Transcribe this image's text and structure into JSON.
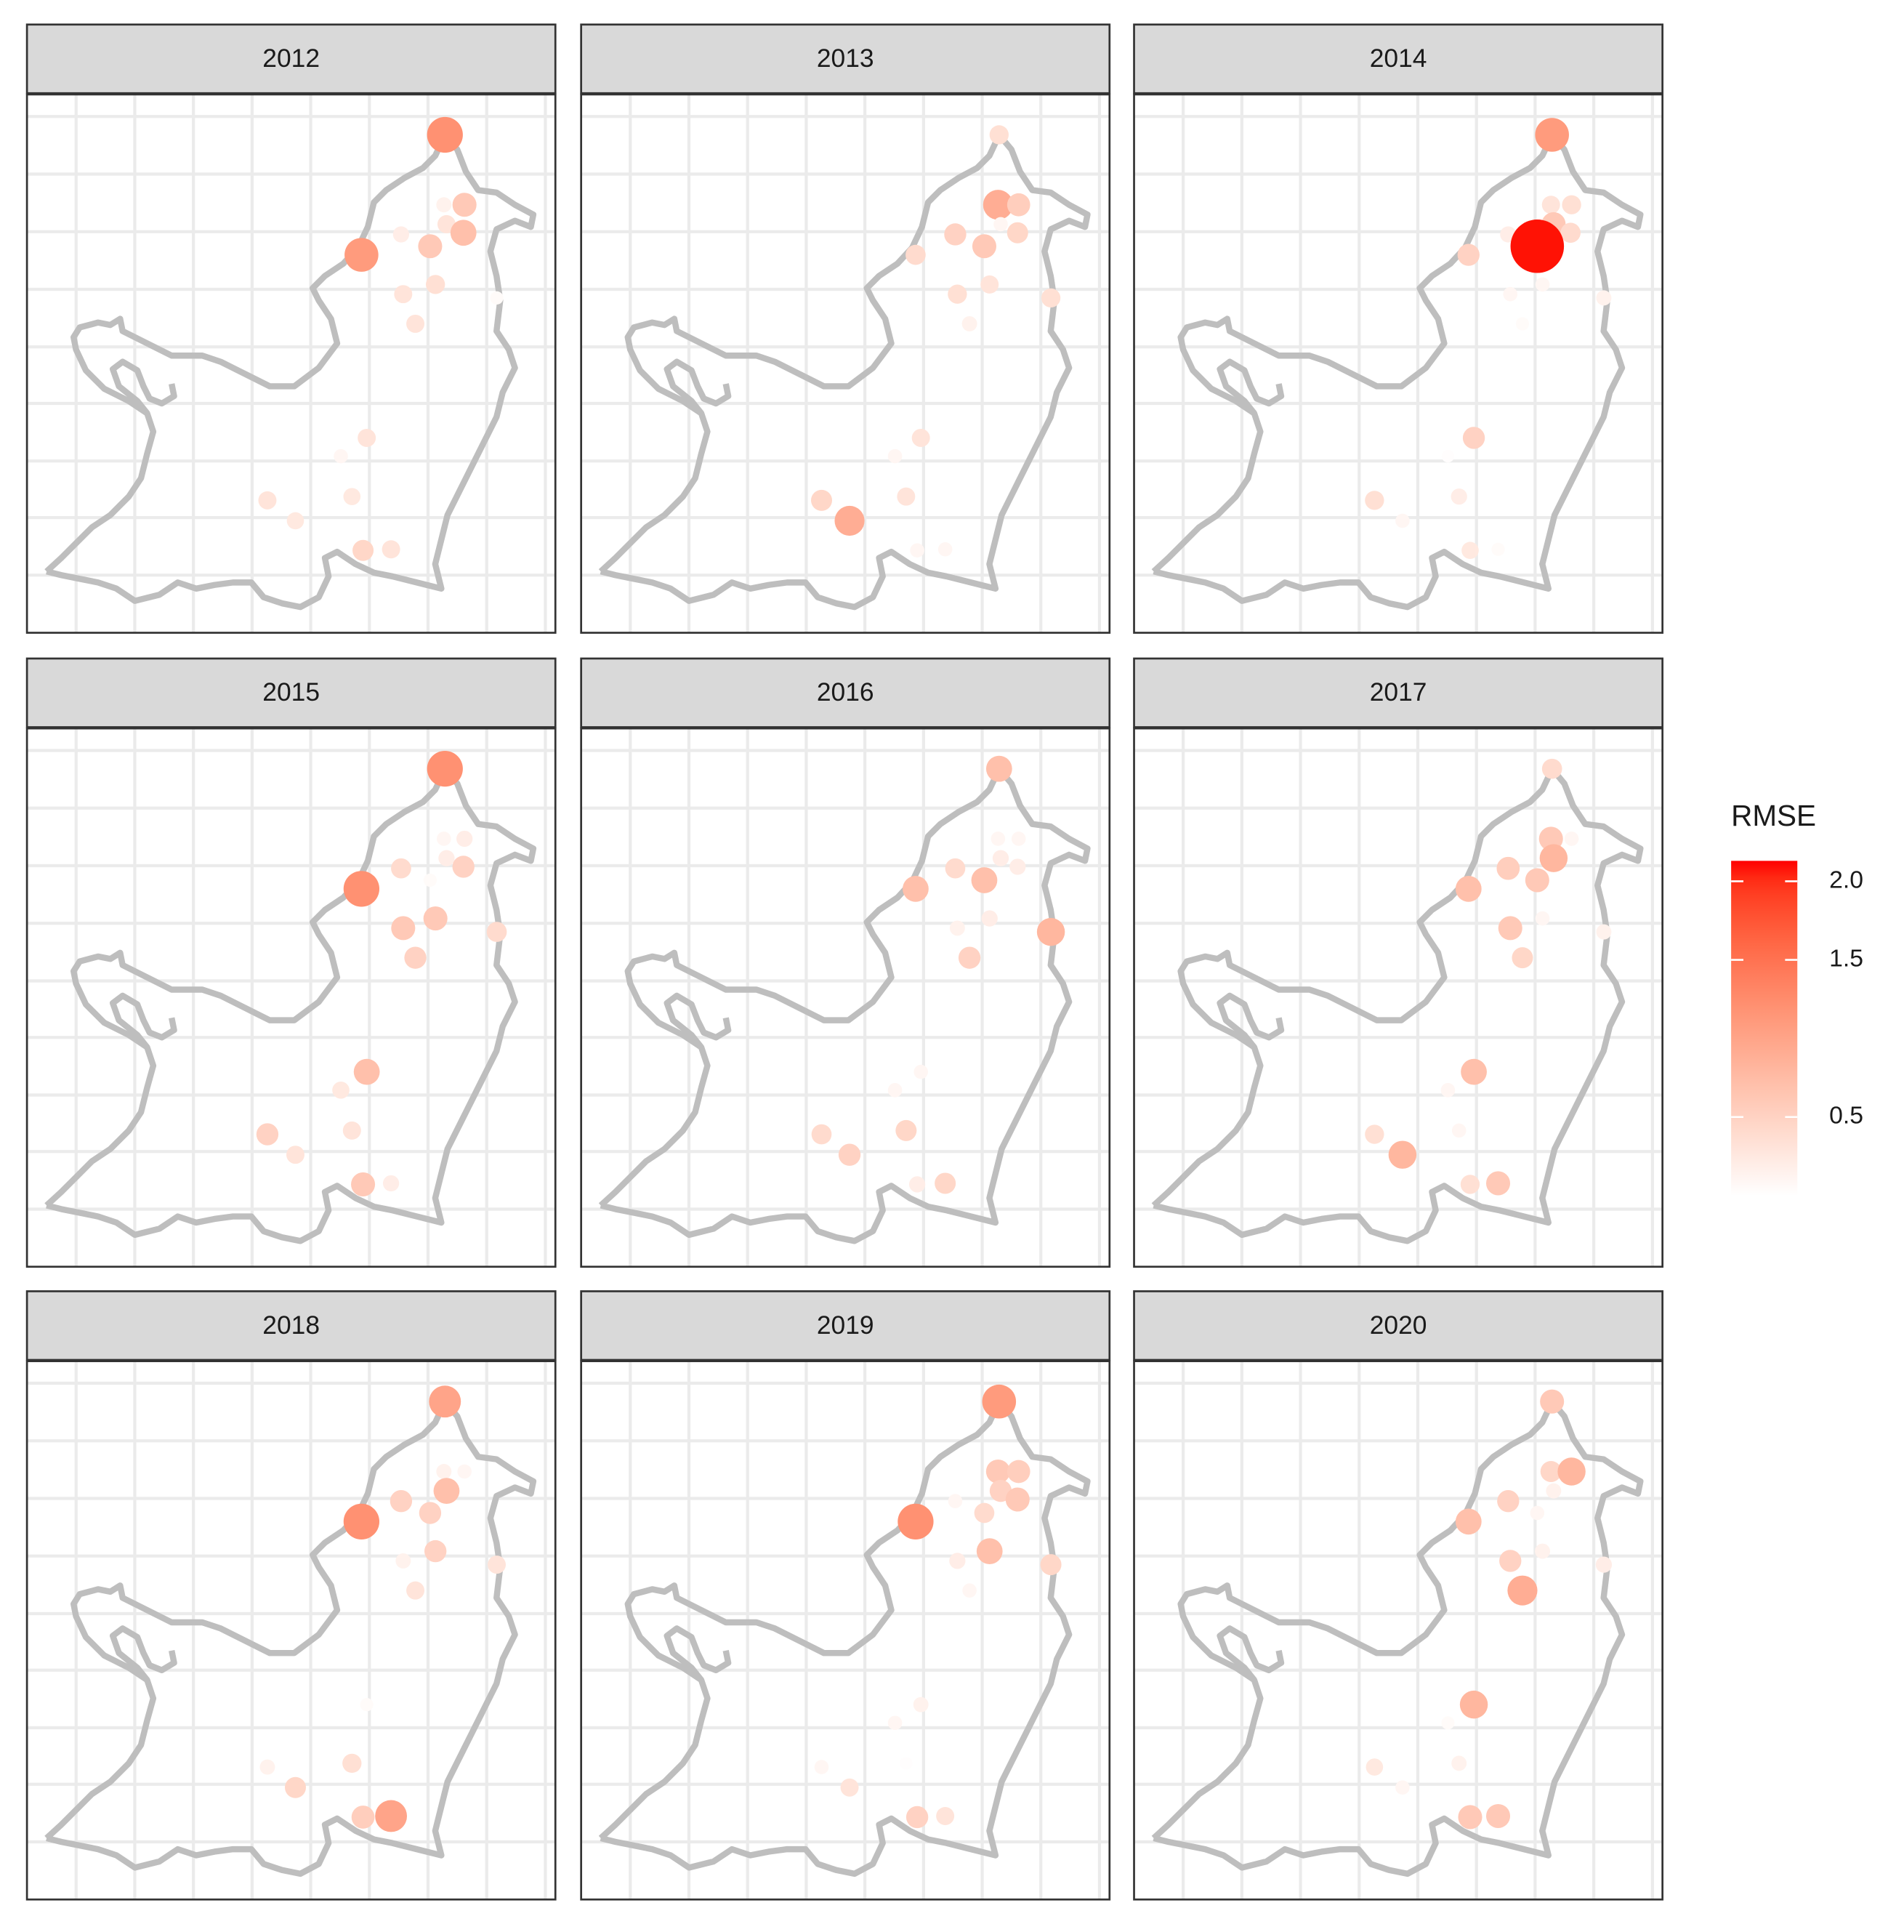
{
  "chart_data": {
    "type": "scatter",
    "legend_title": "RMSE",
    "x": [
      79.1,
      78.9,
      82.8,
      79.4,
      82.6,
      70.8,
      76.3,
      63.3,
      77.3,
      71.2,
      73.5,
      88.9,
      64.3,
      59.4,
      45.5,
      61.5,
      50.8,
      63.6,
      68.9
    ],
    "y": [
      92.5,
      79.5,
      79.5,
      75.9,
      74.3,
      74.0,
      71.8,
      70.2,
      64.7,
      62.9,
      57.4,
      62.2,
      36.2,
      32.8,
      24.6,
      25.3,
      20.8,
      15.3,
      15.5
    ],
    "xlim": [
      0,
      100
    ],
    "ylim": [
      0,
      100
    ],
    "xticks": [
      9.3,
      20.4,
      31.5,
      42.6,
      53.7,
      64.8,
      75.9,
      87.0,
      98.1
    ],
    "yticks": [
      10.7,
      21.4,
      31.9,
      42.6,
      53.1,
      63.8,
      74.5,
      85.2,
      95.9
    ],
    "grid": true,
    "colors": [
      "#ffffff",
      "#ff0000"
    ],
    "colorlim": [
      0,
      2.13
    ],
    "colorticks": [
      {
        "value": 2,
        "label": "2.0"
      },
      1.5,
      0.5
    ],
    "facets": [
      {
        "title": "2012",
        "values": [
          1.2,
          0.15,
          0.6,
          0.3,
          0.7,
          0.2,
          0.6,
          1.1,
          0.35,
          0.3,
          0.3,
          0.05,
          0.3,
          0.1,
          0.3,
          0.25,
          0.25,
          0.45,
          0.3
        ]
      },
      {
        "title": "2013",
        "values": [
          0.35,
          0.9,
          0.55,
          0.1,
          0.45,
          0.5,
          0.6,
          0.4,
          0.3,
          0.35,
          0.15,
          0.35,
          0.3,
          0.1,
          0.45,
          0.3,
          0.9,
          0.1,
          0.1
        ]
      },
      {
        "title": "2014",
        "values": [
          1.1,
          0.3,
          0.35,
          0.6,
          0.4,
          0.2,
          2.1,
          0.5,
          0.1,
          0.1,
          0.05,
          0.15,
          0.5,
          0.02,
          0.35,
          0.2,
          0.1,
          0.25,
          0.05
        ]
      },
      {
        "title": "2015",
        "values": [
          1.2,
          0.1,
          0.2,
          0.2,
          0.5,
          0.4,
          0.05,
          1.2,
          0.6,
          0.6,
          0.5,
          0.4,
          0.7,
          0.25,
          0.5,
          0.3,
          0.3,
          0.6,
          0.2
        ]
      },
      {
        "title": "2016",
        "values": [
          0.7,
          0.1,
          0.1,
          0.2,
          0.2,
          0.4,
          0.7,
          0.7,
          0.2,
          0.15,
          0.5,
          0.8,
          0.1,
          0.1,
          0.4,
          0.45,
          0.5,
          0.2,
          0.45
        ]
      },
      {
        "title": "2017",
        "values": [
          0.4,
          0.6,
          0.1,
          0.8,
          null,
          0.55,
          0.6,
          0.7,
          0.1,
          0.6,
          0.45,
          0.15,
          0.7,
          0.1,
          0.35,
          0.1,
          0.8,
          0.35,
          0.6
        ]
      },
      {
        "title": "2018",
        "values": [
          1.0,
          0.15,
          0.1,
          0.7,
          null,
          0.5,
          0.5,
          1.2,
          0.5,
          0.15,
          0.3,
          0.3,
          0.05,
          null,
          0.15,
          0.35,
          0.45,
          0.55,
          1.0
        ]
      },
      {
        "title": "2019",
        "values": [
          1.1,
          0.6,
          0.55,
          0.5,
          0.6,
          0.1,
          0.4,
          1.2,
          0.7,
          0.2,
          0.1,
          0.45,
          0.15,
          0.1,
          0.1,
          0.02,
          0.3,
          0.5,
          0.3
        ]
      },
      {
        "title": "2020",
        "values": [
          0.6,
          0.45,
          0.8,
          0.15,
          null,
          0.5,
          0.1,
          0.7,
          0.15,
          0.5,
          0.9,
          0.2,
          0.8,
          0.05,
          0.25,
          0.15,
          0.1,
          0.6,
          0.6
        ]
      }
    ]
  }
}
